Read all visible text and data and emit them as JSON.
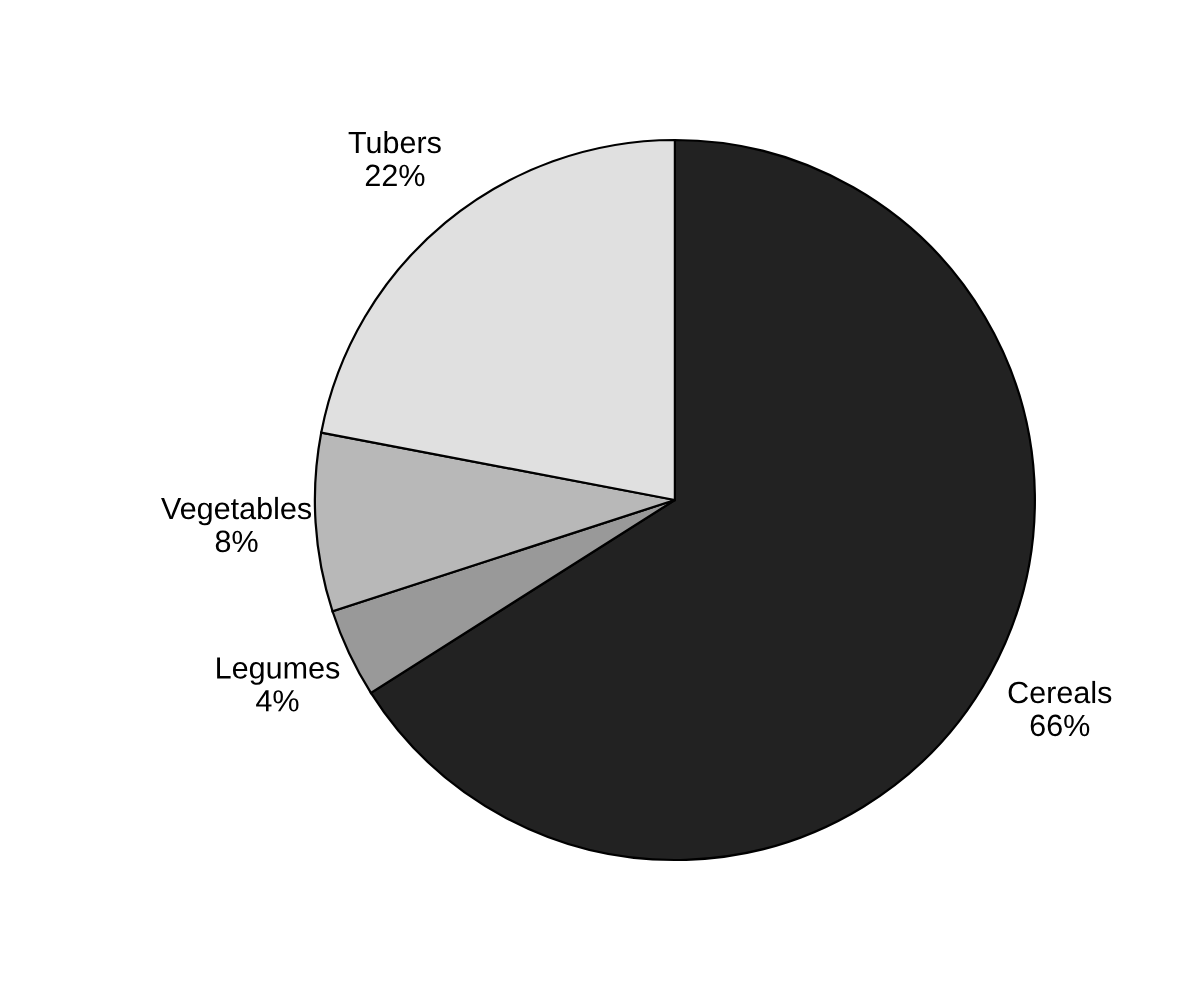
{
  "chart_data": {
    "type": "pie",
    "categories": [
      "Cereals",
      "Legumes",
      "Vegetables",
      "Tubers"
    ],
    "values": [
      66,
      4,
      8,
      22
    ],
    "colors": [
      "#222222",
      "#999999",
      "#b8b8b8",
      "#e0e0e0"
    ],
    "value_labels": [
      "66%",
      "4%",
      "8%",
      "22%"
    ]
  }
}
